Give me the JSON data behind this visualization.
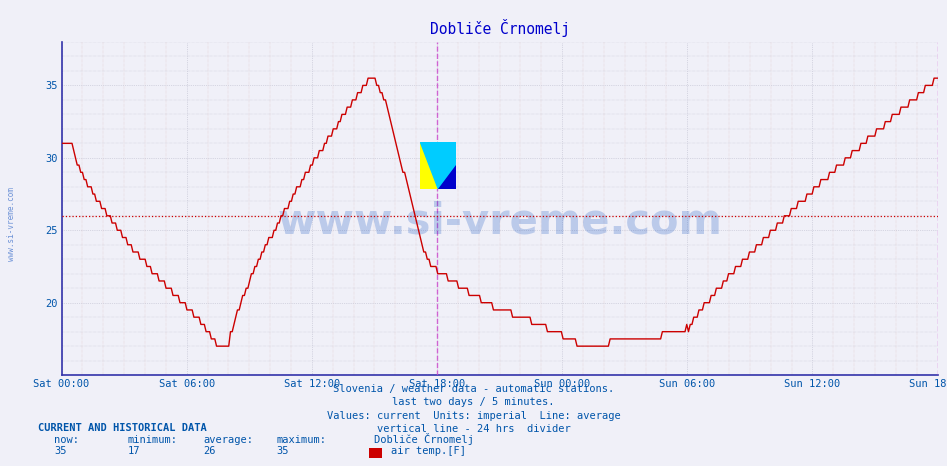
{
  "title": "Dobliče Črnomelj",
  "title_color": "#0000cc",
  "bg_color": "#f0f0f8",
  "plot_bg_color": "#f0f0f8",
  "line_color": "#cc0000",
  "average_line_color": "#cc0000",
  "average_value": 26,
  "ylim": [
    15,
    38
  ],
  "yticks": [
    20,
    25,
    30,
    35
  ],
  "xtick_labels": [
    "Sat 00:00",
    "Sat 06:00",
    "Sat 12:00",
    "Sat 18:00",
    "Sun 00:00",
    "Sun 06:00",
    "Sun 12:00",
    "Sun 18:00"
  ],
  "vline_color": "#cc44cc",
  "watermark_text": "www.si-vreme.com",
  "watermark_color": "#0044bb",
  "watermark_alpha": 0.22,
  "footer_lines": [
    "Slovenia / weather data - automatic stations.",
    "last two days / 5 minutes.",
    "Values: current  Units: imperial  Line: average",
    "vertical line - 24 hrs  divider"
  ],
  "footer_color": "#0055aa",
  "left_label": "www.si-vreme.com",
  "left_label_color": "#0044bb",
  "stats_label": "CURRENT AND HISTORICAL DATA",
  "stats_now": 35,
  "stats_min": 17,
  "stats_avg": 26,
  "stats_max": 35,
  "stats_station": "Dobliče Črnomelj",
  "stats_series": "air temp.[F]",
  "legend_color": "#cc0000"
}
